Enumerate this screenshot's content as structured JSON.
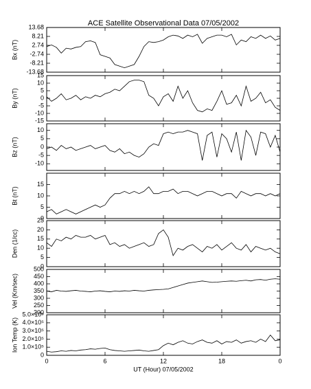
{
  "chart_data": [
    {
      "type": "line",
      "title": "ACE Satellite Observational Data  07/05/2002",
      "ylabel": "Bx (nT)",
      "ylim": [
        -13.68,
        13.68
      ],
      "yticks": [
        -13.68,
        -8.21,
        -2.74,
        2.74,
        8.21,
        13.68
      ],
      "xlim": [
        0,
        24
      ],
      "x": [
        0,
        0.5,
        1,
        1.5,
        2,
        2.5,
        3,
        3.5,
        4,
        4.5,
        5,
        5.5,
        6,
        6.5,
        7,
        7.5,
        8,
        8.5,
        9,
        9.5,
        10,
        10.5,
        11,
        11.5,
        12,
        12.5,
        13,
        13.5,
        14,
        14.5,
        15,
        15.5,
        16,
        16.5,
        17,
        17.5,
        18,
        18.5,
        19,
        19.5,
        20,
        20.5,
        21,
        21.5,
        22,
        22.5,
        23,
        23.5,
        24
      ],
      "values": [
        2,
        3,
        1.5,
        -2,
        1,
        0.5,
        1.5,
        2,
        5,
        5.5,
        4.5,
        -3,
        -4,
        -5,
        -9,
        -10,
        -11,
        -10,
        -9,
        -4,
        2,
        5,
        4.5,
        5,
        6,
        8,
        9,
        8.5,
        7,
        9,
        8,
        9.5,
        4,
        7,
        8,
        9,
        9,
        8,
        9.5,
        3,
        6,
        5,
        8,
        7,
        9,
        7,
        8.5,
        6,
        7
      ]
    },
    {
      "type": "line",
      "ylabel": "By (nT)",
      "ylim": [
        -15,
        15
      ],
      "yticks": [
        -15,
        -10,
        -5,
        0,
        5,
        10,
        15
      ],
      "xlim": [
        0,
        24
      ],
      "x": [
        0,
        0.5,
        1,
        1.5,
        2,
        2.5,
        3,
        3.5,
        4,
        4.5,
        5,
        5.5,
        6,
        6.5,
        7,
        7.5,
        8,
        8.5,
        9,
        9.5,
        10,
        10.5,
        11,
        11.5,
        12,
        12.5,
        13,
        13.5,
        14,
        14.5,
        15,
        15.5,
        16,
        16.5,
        17,
        17.5,
        18,
        18.5,
        19,
        19.5,
        20,
        20.5,
        21,
        21.5,
        22,
        22.5,
        23,
        23.5,
        24
      ],
      "values": [
        1,
        -2,
        0,
        3,
        -1,
        0,
        2,
        -1,
        1,
        0,
        2,
        1,
        3,
        4,
        6,
        5,
        8,
        11,
        12,
        12,
        11,
        2,
        0,
        -5,
        1,
        3,
        -2,
        8,
        0,
        5,
        -3,
        -8,
        -9,
        -7,
        -8,
        -2,
        5,
        -4,
        -3,
        2,
        -5,
        8,
        -2,
        0,
        4,
        -3,
        -1,
        -6,
        -8
      ]
    },
    {
      "type": "line",
      "ylabel": "Bz (nT)",
      "ylim": [
        -14,
        14
      ],
      "yticks": [
        -10,
        -5,
        0,
        5,
        10
      ],
      "xlim": [
        0,
        24
      ],
      "x": [
        0,
        0.5,
        1,
        1.5,
        2,
        2.5,
        3,
        3.5,
        4,
        4.5,
        5,
        5.5,
        6,
        6.5,
        7,
        7.5,
        8,
        8.5,
        9,
        9.5,
        10,
        10.5,
        11,
        11.5,
        12,
        12.5,
        13,
        13.5,
        14,
        14.5,
        15,
        15.5,
        16,
        16.5,
        17,
        17.5,
        18,
        18.5,
        19,
        19.5,
        20,
        20.5,
        21,
        21.5,
        22,
        22.5,
        23,
        23.5,
        24
      ],
      "values": [
        -1,
        0,
        -2,
        1,
        -1,
        0,
        -2,
        -1,
        0,
        1,
        -1,
        0,
        1,
        -2,
        -3,
        -1,
        -4,
        -3,
        -5,
        -6,
        -4,
        0,
        2,
        1,
        8,
        9,
        8,
        9,
        9,
        10,
        9,
        8,
        -8,
        7,
        9,
        -6,
        8,
        5,
        -3,
        9,
        -8,
        10,
        6,
        -5,
        9,
        8,
        0,
        7,
        -3
      ]
    },
    {
      "type": "line",
      "ylabel": "Bt (nT)",
      "ylim": [
        0,
        20
      ],
      "yticks": [
        0,
        5,
        10,
        15
      ],
      "xlim": [
        0,
        24
      ],
      "x": [
        0,
        0.5,
        1,
        1.5,
        2,
        2.5,
        3,
        3.5,
        4,
        4.5,
        5,
        5.5,
        6,
        6.5,
        7,
        7.5,
        8,
        8.5,
        9,
        9.5,
        10,
        10.5,
        11,
        11.5,
        12,
        12.5,
        13,
        13.5,
        14,
        14.5,
        15,
        15.5,
        16,
        16.5,
        17,
        17.5,
        18,
        18.5,
        19,
        19.5,
        20,
        20.5,
        21,
        21.5,
        22,
        22.5,
        23,
        23.5,
        24
      ],
      "values": [
        3,
        4,
        2,
        3,
        4,
        3,
        2,
        3,
        4,
        5,
        6,
        5,
        6,
        9,
        11,
        11,
        12,
        11,
        12,
        11,
        12,
        14,
        11,
        11,
        12,
        12,
        13,
        11,
        12,
        12,
        11,
        10,
        11,
        12,
        12,
        11,
        10,
        11,
        11,
        9,
        12,
        11,
        10,
        11,
        11,
        10,
        11,
        10,
        11
      ]
    },
    {
      "type": "line",
      "ylabel": "Den (1/cc)",
      "ylim": [
        0,
        25
      ],
      "yticks": [
        0,
        5,
        10,
        15,
        20,
        25
      ],
      "xlim": [
        0,
        24
      ],
      "x": [
        0,
        0.5,
        1,
        1.5,
        2,
        2.5,
        3,
        3.5,
        4,
        4.5,
        5,
        5.5,
        6,
        6.5,
        7,
        7.5,
        8,
        8.5,
        9,
        9.5,
        10,
        10.5,
        11,
        11.5,
        12,
        12.5,
        13,
        13.5,
        14,
        14.5,
        15,
        15.5,
        16,
        16.5,
        17,
        17.5,
        18,
        18.5,
        19,
        19.5,
        20,
        20.5,
        21,
        21.5,
        22,
        22.5,
        23,
        23.5,
        24
      ],
      "values": [
        13,
        11,
        15,
        14,
        16,
        15,
        17,
        16,
        16,
        17,
        15,
        16,
        17,
        12,
        13,
        11,
        12,
        10,
        11,
        12,
        13,
        11,
        12,
        18,
        20,
        16,
        6,
        10,
        9,
        11,
        12,
        10,
        8,
        11,
        10,
        12,
        9,
        11,
        13,
        10,
        9,
        12,
        8,
        11,
        10,
        9,
        10,
        8,
        7
      ]
    },
    {
      "type": "line",
      "ylabel": "Vel (Km/sec)",
      "ylim": [
        200,
        500
      ],
      "yticks": [
        200,
        250,
        300,
        350,
        400,
        450,
        500
      ],
      "xlim": [
        0,
        24
      ],
      "x": [
        0,
        0.5,
        1,
        1.5,
        2,
        2.5,
        3,
        3.5,
        4,
        4.5,
        5,
        5.5,
        6,
        6.5,
        7,
        7.5,
        8,
        8.5,
        9,
        9.5,
        10,
        10.5,
        11,
        11.5,
        12,
        12.5,
        13,
        13.5,
        14,
        14.5,
        15,
        15.5,
        16,
        16.5,
        17,
        17.5,
        18,
        18.5,
        19,
        19.5,
        20,
        20.5,
        21,
        21.5,
        22,
        22.5,
        23,
        23.5,
        24
      ],
      "values": [
        350,
        345,
        355,
        350,
        348,
        352,
        355,
        350,
        348,
        345,
        350,
        352,
        348,
        345,
        350,
        348,
        352,
        350,
        355,
        352,
        350,
        355,
        358,
        360,
        362,
        365,
        375,
        385,
        395,
        405,
        410,
        415,
        420,
        415,
        410,
        412,
        415,
        418,
        420,
        418,
        422,
        425,
        420,
        428,
        430,
        425,
        432,
        435,
        432
      ]
    },
    {
      "type": "line",
      "ylabel": "Ion Temp (K)",
      "xlabel": "UT (Hour)  07/05/2002",
      "ylim": [
        0,
        500000
      ],
      "yticks": [
        0,
        {
          "value": 100000,
          "label": "1.0×10⁵"
        },
        {
          "value": 200000,
          "label": "2.0×10⁵"
        },
        {
          "value": 300000,
          "label": "3.0×10⁵"
        },
        {
          "value": 400000,
          "label": "4.0×10⁵"
        },
        {
          "value": 500000,
          "label": "5.0×10⁵"
        }
      ],
      "xlim": [
        0,
        24
      ],
      "xticks": [
        0,
        6,
        12,
        18,
        {
          "value": 24,
          "label": "0"
        }
      ],
      "x": [
        0,
        0.5,
        1,
        1.5,
        2,
        2.5,
        3,
        3.5,
        4,
        4.5,
        5,
        5.5,
        6,
        6.5,
        7,
        7.5,
        8,
        8.5,
        9,
        9.5,
        10,
        10.5,
        11,
        11.5,
        12,
        12.5,
        13,
        13.5,
        14,
        14.5,
        15,
        15.5,
        16,
        16.5,
        17,
        17.5,
        18,
        18.5,
        19,
        19.5,
        20,
        20.5,
        21,
        21.5,
        22,
        22.5,
        23,
        23.5,
        24
      ],
      "values": [
        50000,
        40000,
        45000,
        55000,
        50000,
        60000,
        55000,
        65000,
        70000,
        80000,
        75000,
        85000,
        90000,
        70000,
        60000,
        55000,
        50000,
        55000,
        60000,
        65000,
        55000,
        50000,
        60000,
        70000,
        120000,
        150000,
        130000,
        160000,
        180000,
        150000,
        140000,
        170000,
        190000,
        160000,
        150000,
        180000,
        140000,
        170000,
        160000,
        190000,
        150000,
        170000,
        180000,
        160000,
        200000,
        170000,
        250000,
        180000,
        190000
      ]
    }
  ]
}
